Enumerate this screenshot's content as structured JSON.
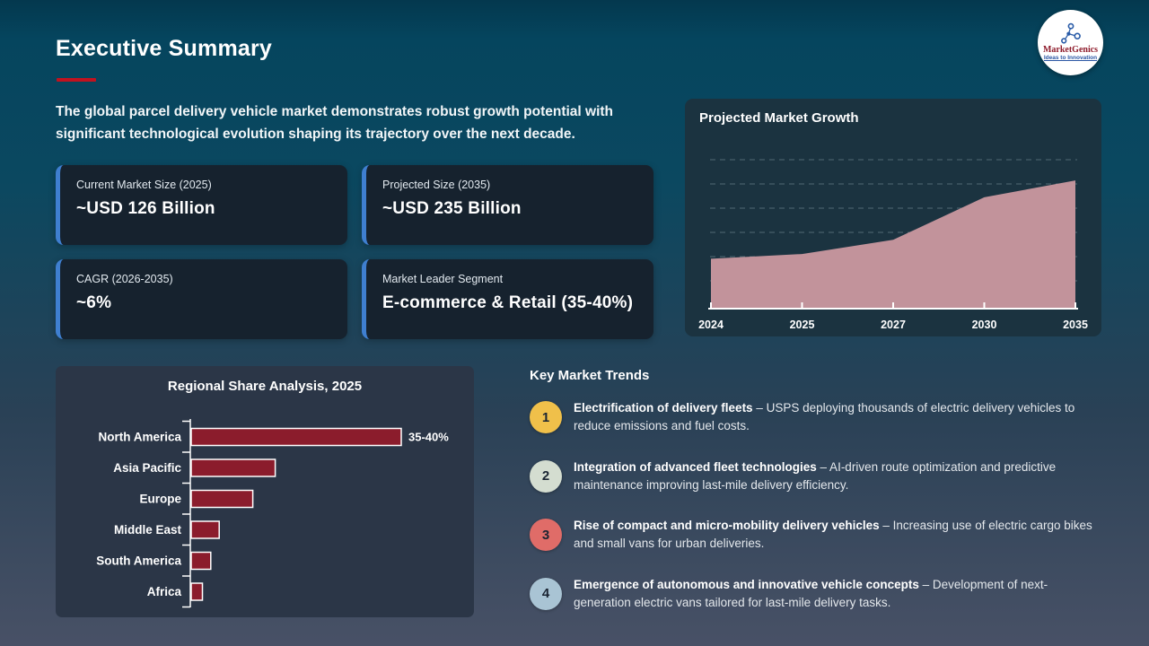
{
  "page": {
    "title": "Executive Summary",
    "intro": "The global parcel delivery vehicle market demonstrates robust growth potential with significant technological evolution shaping its trajectory over the next decade."
  },
  "logo": {
    "name": "MarketGenics",
    "tagline": "Ideas to Innovation"
  },
  "colors": {
    "accent_red": "#c1121f",
    "stat_card_accent": "#3f7fd0",
    "area_fill": "#c2939b",
    "bar_fill": "#8b1c2c",
    "background_top": "#05455e",
    "background_bottom": "#485166"
  },
  "stats": [
    {
      "label": "Current Market Size (2025)",
      "value": "~USD 126 Billion"
    },
    {
      "label": "Projected Size (2035)",
      "value": "~USD 235 Billion"
    },
    {
      "label": "CAGR (2026-2035)",
      "value": "~6%"
    },
    {
      "label": "Market Leader Segment",
      "value": "E-commerce & Retail (35-40%)"
    }
  ],
  "chart_data": [
    {
      "type": "area",
      "title": "Projected Market Growth",
      "x": [
        "2024",
        "2025",
        "2027",
        "2030",
        "2035"
      ],
      "values": [
        119,
        126,
        147,
        210,
        235
      ],
      "ylim": [
        45,
        270
      ],
      "grid": "horizontal-dashed",
      "legend": "none",
      "fill_color": "#c2939b"
    },
    {
      "type": "bar",
      "orientation": "horizontal",
      "title": "Regional Share Analysis, 2025",
      "categories": [
        "North America",
        "Asia Pacific",
        "Europe",
        "Middle East",
        "South America",
        "Africa"
      ],
      "values": [
        37.5,
        15,
        11,
        5,
        3.5,
        2
      ],
      "value_labels": [
        "35-40%",
        "",
        "",
        "",
        "",
        ""
      ],
      "xlim": [
        0,
        45
      ],
      "grid": "off",
      "bar_color": "#8b1c2c"
    }
  ],
  "trends": {
    "title": "Key Market Trends",
    "items": [
      {
        "number": "1",
        "color": "#f0c04a",
        "bold": "Electrification of delivery fleets",
        "text": " – USPS deploying thousands of electric delivery vehicles to reduce emissions and fuel costs."
      },
      {
        "number": "2",
        "color": "#d4ddd0",
        "bold": "Integration of advanced fleet technologies",
        "text": " – AI-driven route optimization and predictive maintenance improving last-mile delivery efficiency."
      },
      {
        "number": "3",
        "color": "#e06c68",
        "bold": "Rise of compact and micro-mobility delivery vehicles",
        "text": " – Increasing use of electric cargo bikes and small vans for urban deliveries."
      },
      {
        "number": "4",
        "color": "#a9c4d4",
        "bold": "Emergence of autonomous and innovative vehicle concepts",
        "text": " – Development of next-generation electric vans tailored for last-mile delivery tasks."
      }
    ]
  }
}
